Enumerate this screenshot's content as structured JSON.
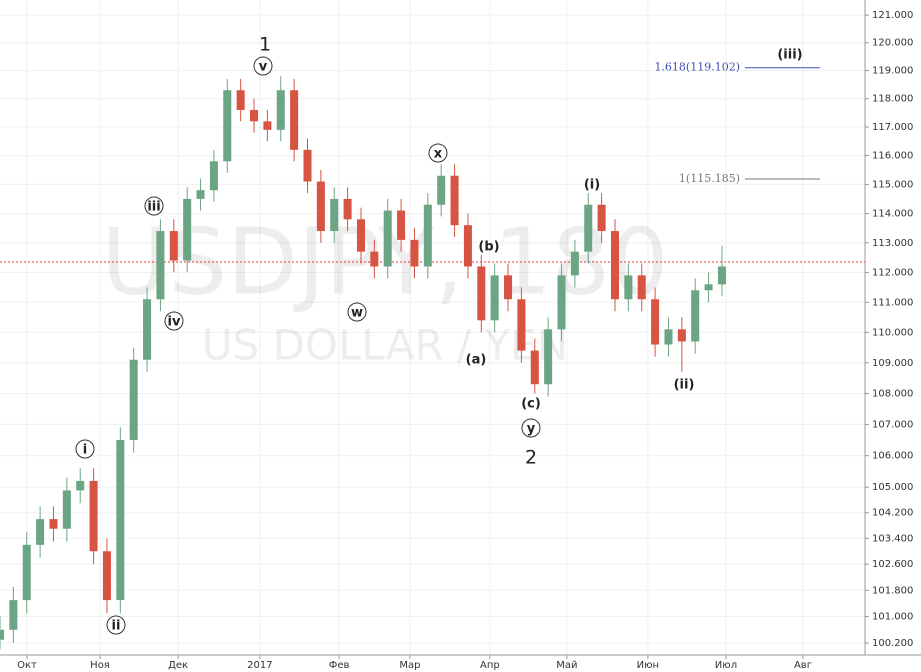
{
  "chart_data": {
    "type": "candlestick",
    "watermark": "USDJPY, 180",
    "watermark_subtitle": "US DOLLAR / YEN",
    "log_scale": true,
    "grid": true,
    "up_color": "#6ba583",
    "down_color": "#d75442",
    "xlim": [
      0,
      323.5
    ],
    "ylim": [
      99.84,
      121.55
    ],
    "xticks": [
      {
        "value": 10.1,
        "label": "Окт"
      },
      {
        "value": 37.4,
        "label": "Ноя"
      },
      {
        "value": 66.6,
        "label": "Дек"
      },
      {
        "value": 97.2,
        "label": "2017"
      },
      {
        "value": 126.8,
        "label": "Фев"
      },
      {
        "value": 153.3,
        "label": "Мар"
      },
      {
        "value": 183.2,
        "label": "Апр"
      },
      {
        "value": 212.0,
        "label": "Май"
      },
      {
        "value": 242.3,
        "label": "Июн"
      },
      {
        "value": 271.5,
        "label": "Июл"
      },
      {
        "value": 300.3,
        "label": "Авг"
      }
    ],
    "yticks": [
      {
        "value": 121,
        "label": "121.000"
      },
      {
        "value": 120,
        "label": "120.000"
      },
      {
        "value": 119,
        "label": "119.000"
      },
      {
        "value": 118,
        "label": "118.000"
      },
      {
        "value": 117,
        "label": "117.000"
      },
      {
        "value": 116,
        "label": "116.000"
      },
      {
        "value": 115,
        "label": "115.000"
      },
      {
        "value": 114,
        "label": "114.000"
      },
      {
        "value": 113,
        "label": "113.000"
      },
      {
        "value": 112,
        "label": "112.000"
      },
      {
        "value": 111,
        "label": "111.000"
      },
      {
        "value": 110,
        "label": "110.000"
      },
      {
        "value": 109,
        "label": "109.000"
      },
      {
        "value": 108,
        "label": "108.000"
      },
      {
        "value": 107,
        "label": "107.000"
      },
      {
        "value": 106,
        "label": "106.000"
      },
      {
        "value": 105,
        "label": "105.000"
      },
      {
        "value": 104.2,
        "label": "104.200"
      },
      {
        "value": 103.4,
        "label": "103.400"
      },
      {
        "value": 102.6,
        "label": "102.600"
      },
      {
        "value": 101.8,
        "label": "101.800"
      },
      {
        "value": 101,
        "label": "101.000"
      },
      {
        "value": 100.2,
        "label": "100.200"
      }
    ],
    "x": [
      0,
      5,
      10,
      15,
      20,
      25,
      30,
      35,
      40,
      45,
      50,
      55,
      60,
      65,
      70,
      75,
      80,
      85,
      90,
      95,
      100,
      105,
      110,
      115,
      120,
      125,
      130,
      135,
      140,
      145,
      150,
      155,
      160,
      165,
      170,
      175,
      180,
      185,
      190,
      195,
      200,
      205,
      210,
      215,
      220,
      225,
      230,
      235,
      240,
      245,
      250,
      255,
      260,
      265,
      270
    ],
    "open": [
      100.3,
      100.6,
      101.5,
      103.2,
      104.0,
      103.7,
      104.9,
      105.2,
      103.0,
      101.5,
      106.5,
      109.1,
      111.1,
      113.4,
      112.4,
      114.5,
      114.8,
      115.8,
      118.3,
      117.6,
      117.2,
      116.9,
      118.3,
      116.2,
      115.1,
      113.4,
      114.5,
      113.8,
      112.7,
      112.2,
      114.1,
      113.1,
      112.2,
      114.3,
      115.3,
      113.6,
      112.2,
      110.4,
      111.9,
      111.1,
      109.4,
      108.3,
      110.1,
      111.9,
      112.7,
      114.3,
      113.4,
      111.1,
      111.9,
      111.1,
      109.6,
      110.1,
      109.7,
      111.4,
      111.6
    ],
    "high": [
      101.0,
      101.9,
      103.6,
      104.4,
      104.4,
      105.3,
      105.6,
      105.6,
      103.4,
      106.9,
      109.5,
      111.5,
      113.8,
      113.8,
      114.9,
      115.2,
      116.2,
      118.7,
      118.7,
      118.0,
      117.6,
      118.8,
      118.7,
      116.6,
      115.5,
      114.9,
      114.9,
      114.2,
      113.1,
      114.5,
      114.5,
      113.5,
      114.7,
      115.7,
      115.7,
      114.0,
      112.6,
      112.3,
      112.3,
      111.5,
      109.8,
      110.5,
      112.3,
      113.1,
      114.7,
      114.7,
      113.8,
      112.3,
      112.3,
      111.5,
      110.5,
      110.5,
      111.8,
      112.0,
      112.9
    ],
    "low": [
      100.0,
      100.2,
      101.1,
      102.8,
      103.3,
      103.3,
      104.5,
      102.6,
      101.1,
      101.1,
      106.1,
      108.7,
      110.7,
      112.0,
      112.0,
      114.1,
      114.4,
      115.4,
      117.2,
      116.8,
      116.5,
      116.5,
      115.8,
      114.7,
      113.0,
      113.0,
      113.4,
      112.3,
      111.8,
      111.8,
      112.7,
      111.8,
      111.8,
      113.9,
      113.2,
      111.8,
      110.0,
      110.0,
      110.7,
      109.0,
      108.0,
      107.9,
      109.7,
      111.5,
      112.3,
      113.0,
      110.7,
      110.7,
      110.7,
      109.2,
      109.2,
      108.7,
      109.3,
      111.0,
      111.2
    ],
    "close": [
      100.6,
      101.5,
      103.2,
      104.0,
      103.7,
      104.9,
      105.2,
      103.0,
      101.5,
      106.5,
      109.1,
      111.1,
      113.4,
      112.4,
      114.5,
      114.8,
      115.8,
      118.3,
      117.6,
      117.2,
      116.9,
      118.3,
      116.2,
      115.1,
      113.4,
      114.5,
      113.8,
      112.7,
      112.2,
      114.1,
      113.1,
      112.2,
      114.3,
      115.3,
      113.6,
      112.2,
      110.4,
      111.9,
      111.1,
      109.4,
      108.3,
      110.1,
      111.9,
      112.7,
      114.3,
      113.4,
      111.1,
      111.9,
      111.1,
      109.6,
      110.1,
      109.7,
      111.4,
      111.6,
      112.2
    ],
    "price_line": {
      "value": 112.35,
      "color": "#e53935"
    },
    "levels": [
      {
        "label": "1.618(119.102)",
        "value": 119.102,
        "color": "#3f51b5"
      },
      {
        "label": "1(115.185)",
        "value": 115.185,
        "color": "#777777"
      }
    ],
    "annotations": [
      {
        "text": "1",
        "circled": false
      },
      {
        "text": "v",
        "circled": true
      },
      {
        "text": "iii",
        "circled": true
      },
      {
        "text": "iv",
        "circled": true
      },
      {
        "text": "i",
        "circled": true
      },
      {
        "text": "ii",
        "circled": true
      },
      {
        "text": "w",
        "circled": true
      },
      {
        "text": "x",
        "circled": true
      },
      {
        "text": "(b)",
        "circled": false
      },
      {
        "text": "(a)",
        "circled": false
      },
      {
        "text": "(c)",
        "circled": false
      },
      {
        "text": "y",
        "circled": true
      },
      {
        "text": "2",
        "circled": false
      },
      {
        "text": "(i)",
        "circled": false
      },
      {
        "text": "(ii)",
        "circled": false
      },
      {
        "text": "(iii)",
        "circled": false
      }
    ]
  }
}
